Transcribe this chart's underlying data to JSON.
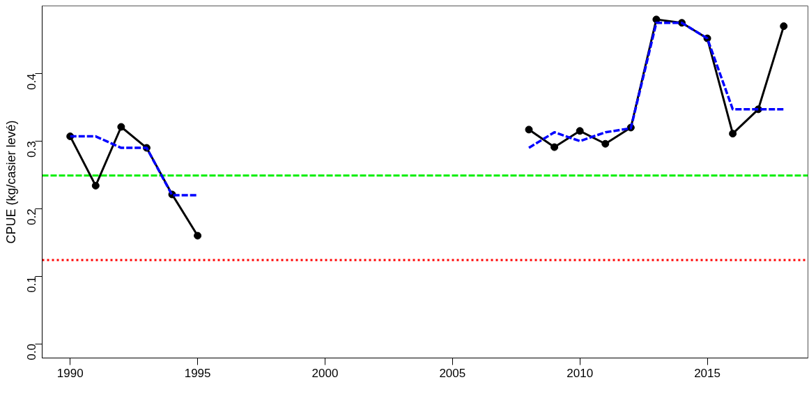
{
  "chart_data": {
    "type": "line",
    "ylabel": "CPUE (kg/casier levé)",
    "x": [
      1990,
      1991,
      1992,
      1993,
      1994,
      1995,
      2008,
      2009,
      2010,
      2011,
      2012,
      2013,
      2014,
      2015,
      2016,
      2017,
      2018
    ],
    "series": [
      {
        "color": "#000000",
        "marker": "circle",
        "line_style": "solid",
        "values": [
          0.307,
          0.234,
          0.321,
          0.29,
          0.221,
          0.16,
          0.317,
          0.291,
          0.315,
          0.296,
          0.32,
          0.48,
          0.475,
          0.452,
          0.311,
          0.347,
          0.47
        ]
      },
      {
        "color": "#0000ff",
        "marker": "none",
        "line_style": "dashed",
        "values": [
          0.307,
          0.307,
          0.29,
          0.29,
          0.22,
          0.22,
          0.29,
          0.313,
          0.3,
          0.313,
          0.319,
          0.475,
          0.475,
          0.452,
          0.347,
          0.347,
          0.347
        ]
      }
    ],
    "ref_lines": [
      {
        "axis": "y",
        "value": 0.249,
        "color": "#00ee00",
        "line_style": "dashed"
      },
      {
        "axis": "y",
        "value": 0.124,
        "color": "#ff0000",
        "line_style": "dotted"
      }
    ],
    "xlim": [
      1988.9,
      2018.95
    ],
    "ylim": [
      -0.021,
      0.5
    ],
    "xticks": [
      1990,
      1995,
      2000,
      2005,
      2010,
      2015
    ],
    "yticks": [
      {
        "value": 0,
        "label": "0.0"
      },
      0.1,
      0.2,
      0.3,
      0.4
    ],
    "grid": false
  }
}
